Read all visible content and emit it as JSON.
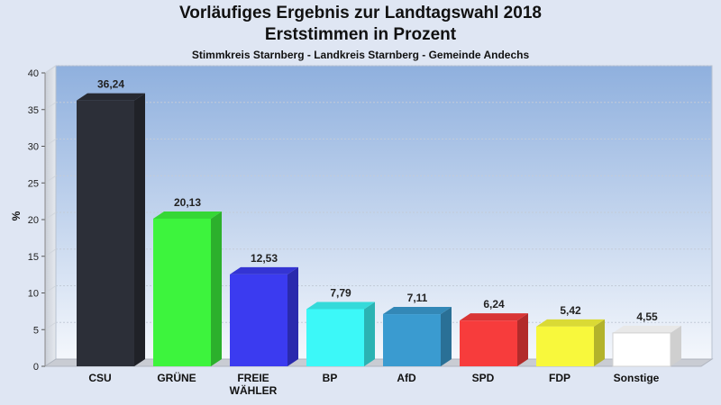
{
  "chart_data": {
    "type": "bar",
    "title": "Vorläufiges Ergebnis zur Landtagswahl 2018",
    "subtitle": "Erststimmen in Prozent",
    "subsubtitle": "Stimmkreis Starnberg - Landkreis Starnberg - Gemeinde Andechs",
    "xlabel": "",
    "ylabel": "%",
    "ylim": [
      0,
      40
    ],
    "yticks": [
      "0",
      "5",
      "10",
      "15",
      "20",
      "25",
      "30",
      "35",
      "40"
    ],
    "grid": true,
    "categories": [
      "CSU",
      "GRÜNE",
      "FREIE WÄHLER",
      "BP",
      "AfD",
      "SPD",
      "FDP",
      "Sonstige"
    ],
    "category_lines": [
      [
        "CSU"
      ],
      [
        "GRÜNE"
      ],
      [
        "FREIE",
        "WÄHLER"
      ],
      [
        "BP"
      ],
      [
        "AfD"
      ],
      [
        "SPD"
      ],
      [
        "FDP"
      ],
      [
        "Sonstige"
      ]
    ],
    "values": [
      36.24,
      20.13,
      12.53,
      7.79,
      7.11,
      6.24,
      5.42,
      4.55
    ],
    "value_labels": [
      "36,24",
      "20,13",
      "12,53",
      "7,79",
      "7,11",
      "6,24",
      "5,42",
      "4,55"
    ],
    "colors": [
      "#2c2f38",
      "#3df43d",
      "#3b3bf0",
      "#3cf8f8",
      "#3a9bd0",
      "#f73c3c",
      "#f8f83c",
      "#ffffff"
    ]
  }
}
